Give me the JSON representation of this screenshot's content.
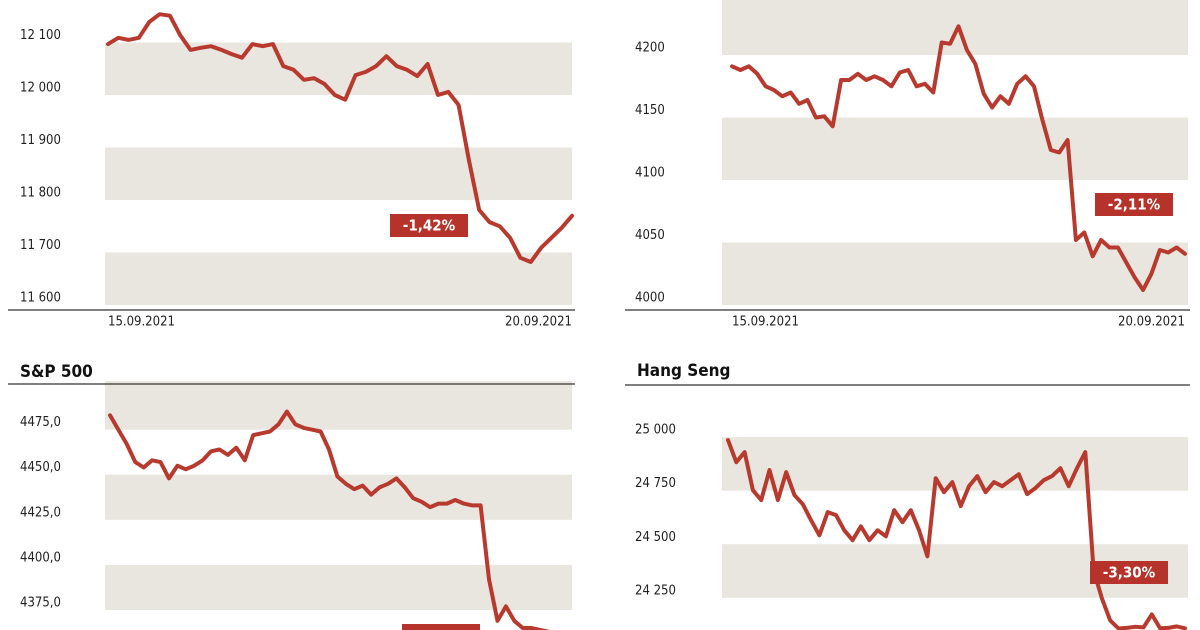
{
  "chart_data": [
    {
      "type": "line",
      "color": "#b83a2e",
      "grid": true,
      "categories": [
        "15.09.2021",
        null,
        null,
        null,
        null,
        null,
        null,
        null,
        null,
        null,
        null,
        null,
        null,
        null,
        null,
        null,
        null,
        null,
        null,
        null,
        null,
        null,
        null,
        null,
        null,
        null,
        null,
        null,
        null,
        null,
        null,
        null,
        null,
        null,
        null,
        null,
        null,
        null,
        null,
        null,
        null,
        null,
        null,
        null,
        null,
        "20.09.2021"
      ],
      "values": [
        12097,
        12109,
        12105,
        12109,
        12139,
        12154,
        12151,
        12114,
        12086,
        12090,
        12093,
        12086,
        12078,
        12071,
        12097,
        12093,
        12097,
        12055,
        12048,
        12029,
        12032,
        12021,
        12000,
        11991,
        12038,
        12044,
        12055,
        12074,
        12055,
        12048,
        12036,
        12059,
        12000,
        12006,
        11981,
        11876,
        11781,
        11758,
        11750,
        11728,
        11690,
        11682,
        11709,
        11728,
        11747,
        11770
      ],
      "ylim": [
        11600,
        12181
      ],
      "yticks": [
        {
          "value": 11600,
          "label": "11 600"
        },
        {
          "value": 11700,
          "label": "11 700"
        },
        {
          "value": 11800,
          "label": "11 800"
        },
        {
          "value": 11900,
          "label": "11 900"
        },
        {
          "value": 12000,
          "label": "12 000"
        },
        {
          "value": 12100,
          "label": "12 100"
        }
      ],
      "annotation": "-1,42%"
    },
    {
      "type": "line",
      "color": "#b83a2e",
      "grid": true,
      "categories": [
        "15.09.2021",
        null,
        null,
        null,
        null,
        null,
        null,
        null,
        null,
        null,
        null,
        null,
        null,
        null,
        null,
        null,
        null,
        null,
        null,
        null,
        null,
        null,
        null,
        null,
        null,
        null,
        null,
        null,
        null,
        null,
        null,
        null,
        null,
        null,
        null,
        null,
        null,
        null,
        null,
        null,
        null,
        null,
        null,
        null,
        null,
        null,
        null,
        null,
        null,
        null,
        null,
        null,
        null,
        null,
        "20.09.2021"
      ],
      "values": [
        4191,
        4188,
        4191,
        4185,
        4175,
        4172,
        4167,
        4170,
        4161,
        4164,
        4150,
        4151,
        4143,
        4180,
        4180,
        4185,
        4180,
        4183,
        4180,
        4175,
        4186,
        4188,
        4175,
        4177,
        4170,
        4210,
        4209,
        4223,
        4204,
        4193,
        4169,
        4158,
        4167,
        4161,
        4177,
        4183,
        4175,
        4148,
        4124,
        4122,
        4132,
        4052,
        4058,
        4039,
        4052,
        4046,
        4046,
        4034,
        4022,
        4012,
        4025,
        4044,
        4042,
        4046,
        4041
      ],
      "ylim": [
        4000,
        4244
      ],
      "yticks": [
        4000,
        4050,
        4100,
        4150,
        4200
      ],
      "annotation": "-2,11%"
    },
    {
      "type": "line",
      "title": "S&P 500",
      "color": "#b83a2e",
      "grid": true,
      "values": [
        4483,
        4475,
        4467,
        4457,
        4454,
        4458,
        4457,
        4448,
        4455,
        4453,
        4455,
        4458,
        4463,
        4464,
        4461,
        4465,
        4458,
        4472,
        4473,
        4474,
        4478,
        4485,
        4478,
        4476,
        4475,
        4474,
        4464,
        4449,
        4445,
        4442,
        4444,
        4439,
        4443,
        4445,
        4448,
        4443,
        4437,
        4435,
        4432,
        4434,
        4434,
        4436,
        4434,
        4433,
        4433,
        4392,
        4369,
        4377,
        4369,
        4365,
        4365,
        4364,
        4363
      ],
      "ylim": [
        4360,
        4502
      ],
      "yticks": [
        {
          "value": 4375,
          "label": "4375,0"
        },
        {
          "value": 4400,
          "label": "4400,0"
        },
        {
          "value": 4425,
          "label": "4425,0"
        },
        {
          "value": 4450,
          "label": "4450,0"
        },
        {
          "value": 4475,
          "label": "4475,0"
        }
      ]
    },
    {
      "type": "line",
      "title": "Hang Seng",
      "color": "#b83a2e",
      "grid": true,
      "values": [
        24986,
        24883,
        24930,
        24752,
        24706,
        24846,
        24706,
        24836,
        24729,
        24687,
        24612,
        24542,
        24650,
        24636,
        24565,
        24519,
        24584,
        24519,
        24565,
        24537,
        24659,
        24603,
        24659,
        24565,
        24444,
        24808,
        24743,
        24790,
        24678,
        24771,
        24818,
        24743,
        24790,
        24771,
        24799,
        24827,
        24734,
        24762,
        24799,
        24818,
        24855,
        24771,
        24855,
        24930,
        24378,
        24248,
        24145,
        24107,
        24110,
        24115,
        24112,
        24173,
        24108,
        24110,
        24117,
        24108
      ],
      "ylim": [
        24100,
        25243
      ],
      "yticks": [
        {
          "value": 24250,
          "label": "24 250"
        },
        {
          "value": 24500,
          "label": "24 500"
        },
        {
          "value": 24750,
          "label": "24 750"
        },
        {
          "value": 25000,
          "label": "25 000"
        }
      ],
      "annotation": "-3,30%"
    }
  ]
}
